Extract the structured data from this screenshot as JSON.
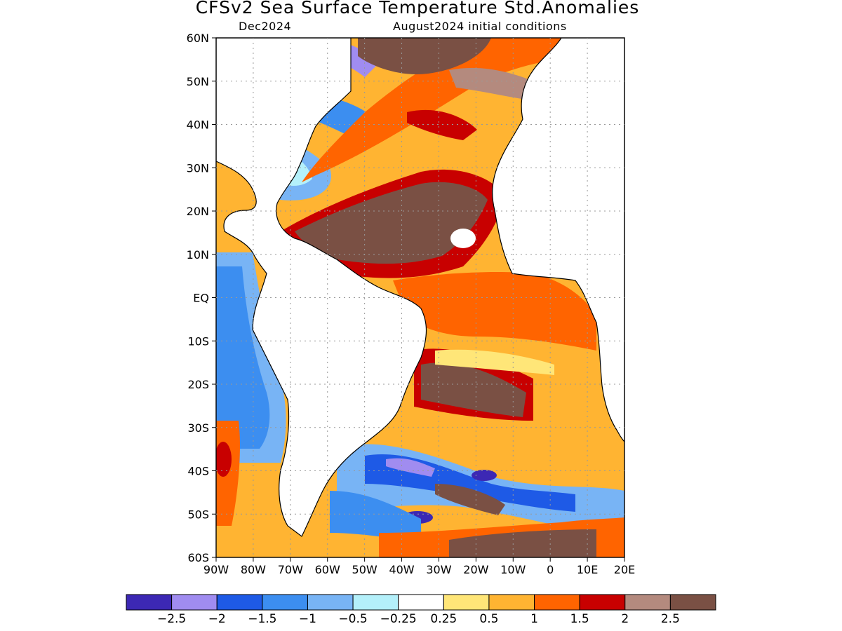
{
  "title": "CFSv2 Sea Surface Temperature Std.Anomalies",
  "subtitle_left": "Dec2024",
  "subtitle_right": "August2024 initial conditions",
  "map": {
    "lon_range": [
      -90,
      20
    ],
    "lat_range": [
      -60,
      60
    ],
    "lat_labels": [
      "60N",
      "50N",
      "40N",
      "30N",
      "20N",
      "10N",
      "EQ",
      "10S",
      "20S",
      "30S",
      "40S",
      "50S",
      "60S"
    ],
    "lon_labels": [
      "90W",
      "80W",
      "70W",
      "60W",
      "50W",
      "40W",
      "30W",
      "20W",
      "10W",
      "0",
      "10E",
      "20E"
    ],
    "lat_values": [
      60,
      50,
      40,
      30,
      20,
      10,
      0,
      -10,
      -20,
      -30,
      -40,
      -50,
      -60
    ],
    "lon_values": [
      -90,
      -80,
      -70,
      -60,
      -50,
      -40,
      -30,
      -20,
      -10,
      0,
      10,
      20
    ]
  },
  "colorbar": {
    "colors": [
      "#3c28b4",
      "#a08cf0",
      "#1e5ae6",
      "#3c8ef0",
      "#78b4f5",
      "#b4f0fa",
      "#ffffff",
      "#ffe678",
      "#ffb432",
      "#ff6400",
      "#c80000",
      "#b48a7e",
      "#7a5044"
    ],
    "labels": [
      "-2.5",
      "-2",
      "-1.5",
      "-1",
      "-0.5",
      "-0.25",
      "0.25",
      "0.5",
      "1",
      "1.5",
      "2",
      "2.5"
    ]
  }
}
